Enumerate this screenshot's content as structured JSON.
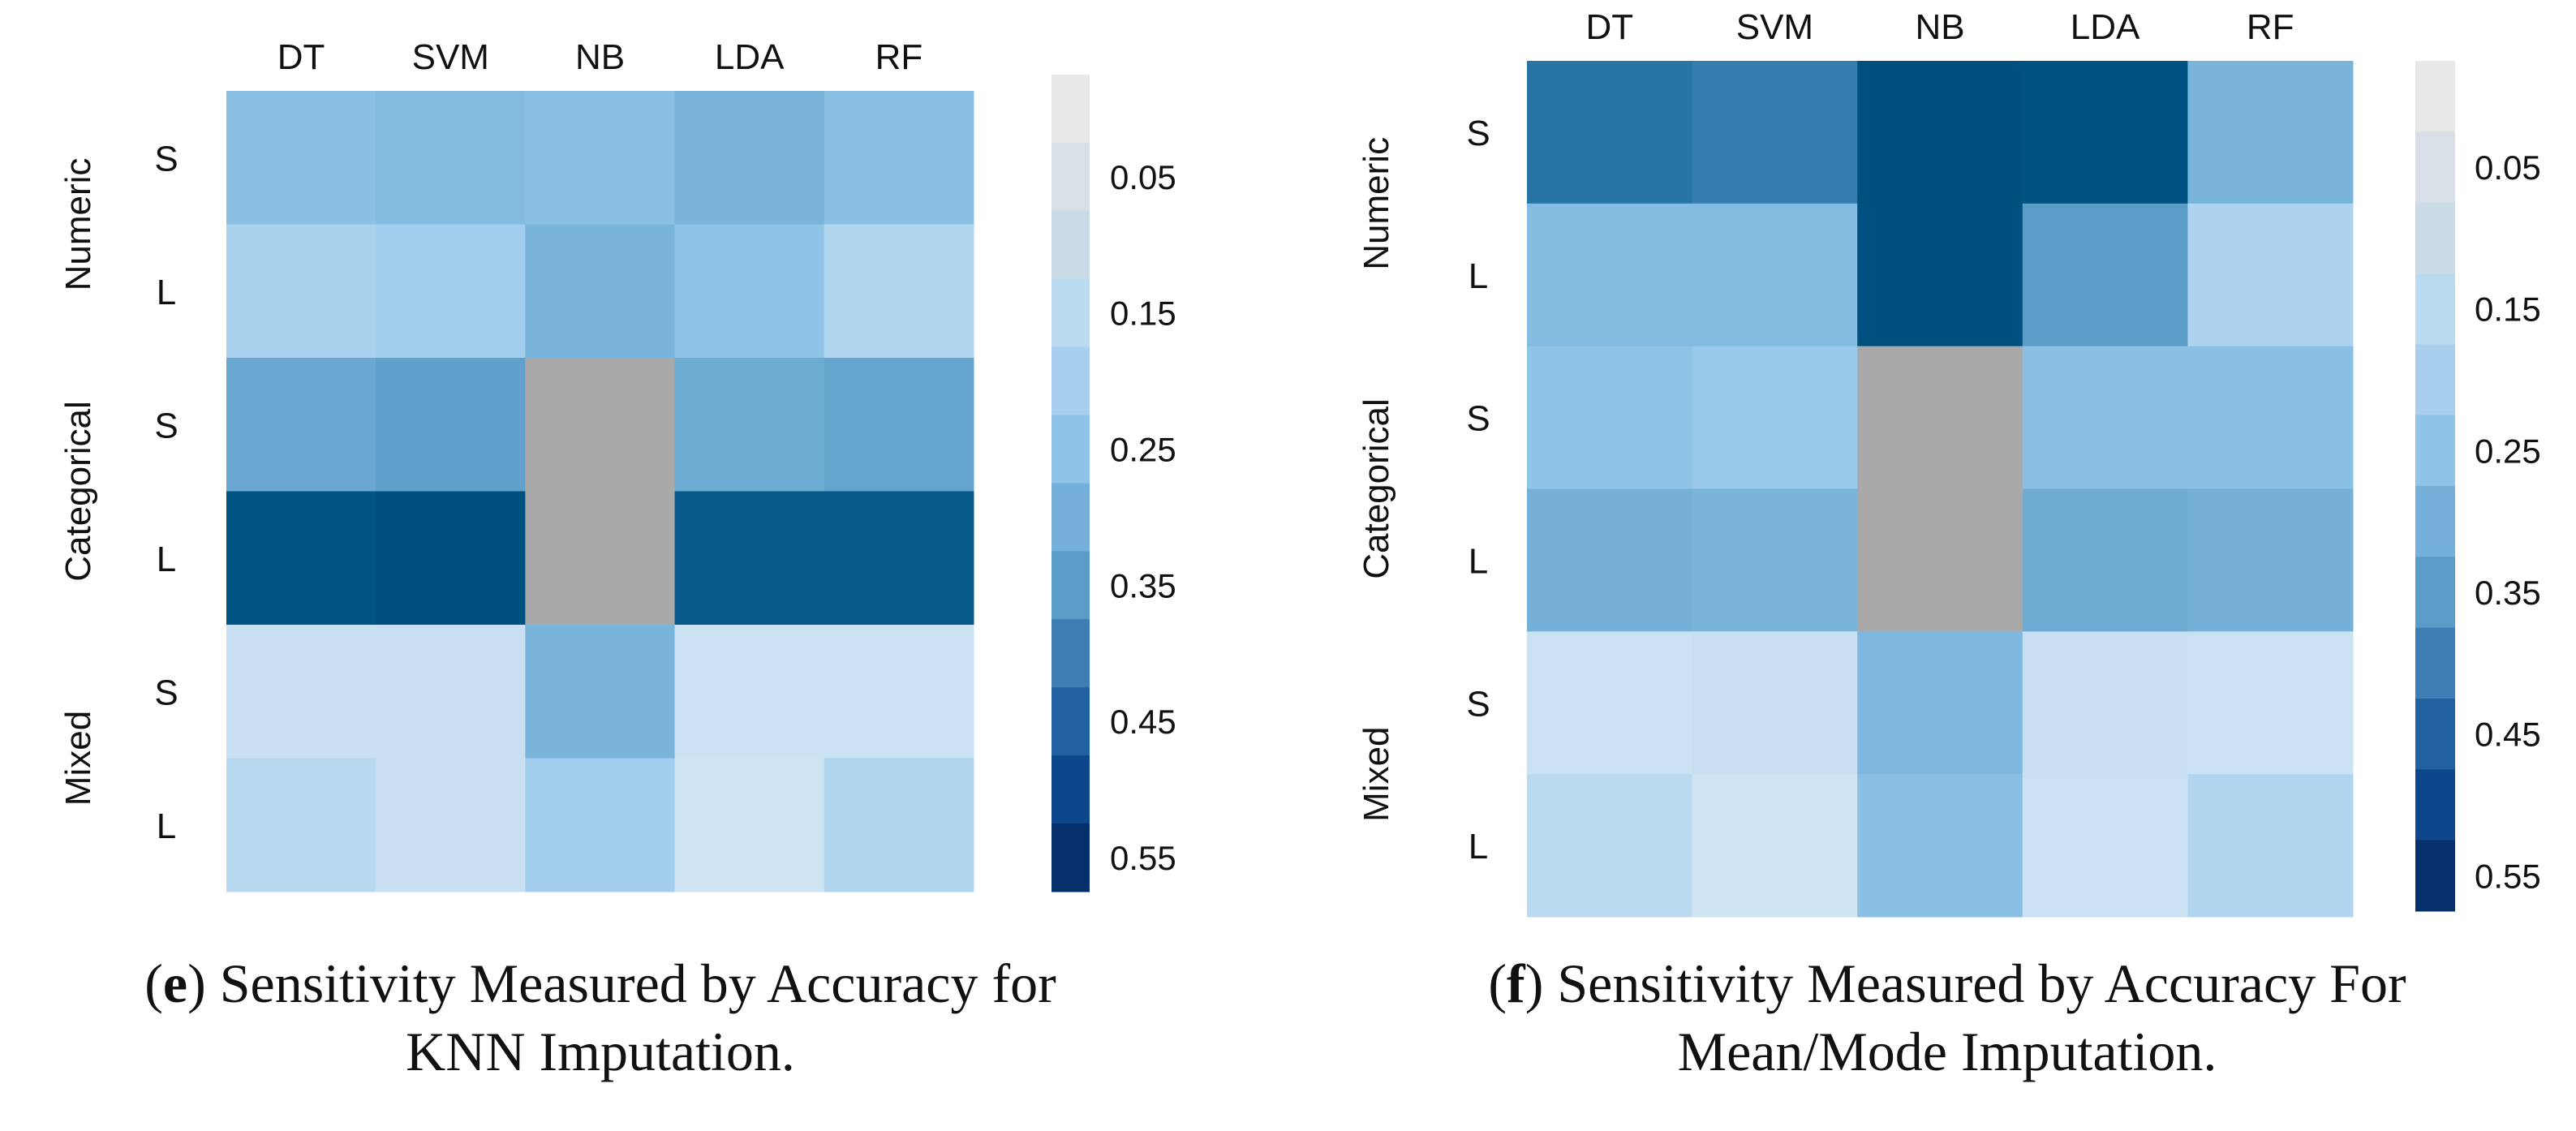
{
  "chart_data": [
    {
      "type": "heatmap",
      "title": "Sensitivity Measured by Accuracy for KNN Imputation.",
      "caption_letter": "e",
      "caption_lines": [
        "Sensitivity Measured by Accuracy for",
        "KNN Imputation."
      ],
      "columns": [
        "DT",
        "SVM",
        "NB",
        "LDA",
        "RF"
      ],
      "row_groups": [
        "Numeric",
        "Categorical",
        "Mixed"
      ],
      "rows": [
        "S",
        "L",
        "S",
        "L",
        "S",
        "L"
      ],
      "values": [
        [
          0.26,
          0.27,
          0.26,
          0.29,
          0.26
        ],
        [
          0.2,
          0.21,
          0.29,
          0.25,
          0.18
        ],
        [
          0.32,
          0.34,
          null,
          0.31,
          0.33
        ],
        [
          0.5,
          0.52,
          null,
          0.49,
          0.49
        ],
        [
          0.13,
          0.13,
          0.29,
          0.12,
          0.12
        ],
        [
          0.17,
          0.13,
          0.21,
          0.11,
          0.18
        ]
      ],
      "colorbar_ticks": [
        "0.05",
        "0.15",
        "0.25",
        "0.35",
        "0.45",
        "0.55"
      ],
      "colorbar_range": [
        -0.025,
        0.575
      ]
    },
    {
      "type": "heatmap",
      "title": "Sensitivity Measured by Accuracy For Mean/Mode Imputation.",
      "caption_letter": "f",
      "caption_lines": [
        "Sensitivity Measured by Accuracy For",
        "Mean/Mode Imputation."
      ],
      "columns": [
        "DT",
        "SVM",
        "NB",
        "LDA",
        "RF"
      ],
      "row_groups": [
        "Numeric",
        "Categorical",
        "Mixed"
      ],
      "rows": [
        "S",
        "L",
        "S",
        "L",
        "S",
        "L"
      ],
      "values": [
        [
          0.43,
          0.41,
          0.52,
          0.51,
          0.29
        ],
        [
          0.27,
          0.27,
          0.52,
          0.35,
          0.19
        ],
        [
          0.25,
          0.23,
          null,
          0.26,
          0.26
        ],
        [
          0.3,
          0.29,
          null,
          0.31,
          0.3
        ],
        [
          0.12,
          0.13,
          0.28,
          0.13,
          0.12
        ],
        [
          0.16,
          0.11,
          0.26,
          0.12,
          0.18
        ]
      ],
      "colorbar_ticks": [
        "0.05",
        "0.15",
        "0.25",
        "0.35",
        "0.45",
        "0.55"
      ],
      "colorbar_range": [
        -0.025,
        0.575
      ]
    }
  ],
  "colors": {
    "missing": "#a9a9a9",
    "colorbar_bins": [
      "#e8e8e8",
      "#d9dfe6",
      "#cbdae7",
      "#badaf0",
      "#a8d0ee",
      "#8fc3e7",
      "#74b0da",
      "#5a9bc8",
      "#3f7db4",
      "#22619f",
      "#0d468a",
      "#062f6b"
    ],
    "cell_stops": [
      [
        0.0,
        "#eef3f7"
      ],
      [
        0.1,
        "#d3e6f3"
      ],
      [
        0.15,
        "#c0dcf0"
      ],
      [
        0.2,
        "#a9d1ee"
      ],
      [
        0.25,
        "#8fc4e7"
      ],
      [
        0.3,
        "#74b0d8"
      ],
      [
        0.35,
        "#5b9cc6"
      ],
      [
        0.42,
        "#2d78aa"
      ],
      [
        0.5,
        "#005585"
      ],
      [
        0.55,
        "#004876"
      ]
    ]
  }
}
